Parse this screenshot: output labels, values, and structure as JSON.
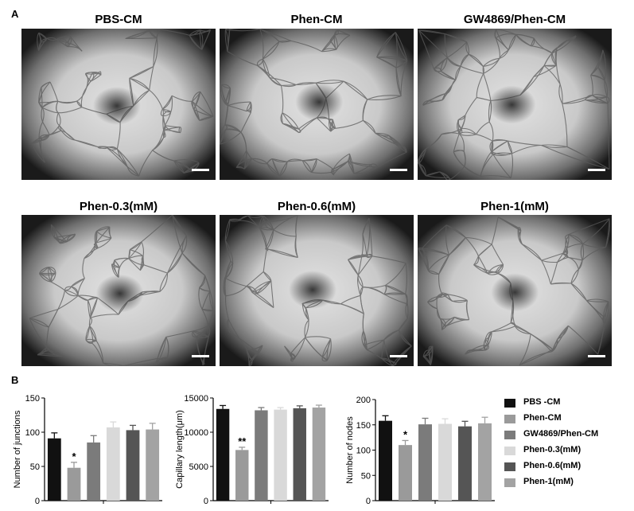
{
  "panel_labels": {
    "a": "A",
    "b": "B"
  },
  "images": [
    {
      "title": "PBS-CM"
    },
    {
      "title": "Phen-CM"
    },
    {
      "title": "GW4869/Phen-CM"
    },
    {
      "title": "Phen-0.3(mM)"
    },
    {
      "title": "Phen-0.6(mM)"
    },
    {
      "title": "Phen-1(mM)"
    }
  ],
  "colors": {
    "PBS -CM": "#111111",
    "Phen-CM": "#9a9a9a",
    "GW4869/Phen-CM": "#7b7b7b",
    "Phen-0.3(mM)": "#d9d9d9",
    "Phen-0.6(mM)": "#555555",
    "Phen-1(mM)": "#a3a3a3"
  },
  "chart_data": [
    {
      "type": "bar",
      "ylabel": "Number of junctions",
      "ylim": [
        0,
        150
      ],
      "yticks": [
        "0",
        "50",
        "100",
        "150"
      ],
      "categories": [
        "PBS -CM",
        "Phen-CM",
        "GW4869/Phen-CM",
        "Phen-0.3(mM)",
        "Phen-0.6(mM)",
        "Phen-1(mM)"
      ],
      "values": [
        91,
        48,
        85,
        107,
        103,
        104
      ],
      "errors": [
        8,
        8,
        10,
        8,
        7,
        9
      ],
      "annotations": [
        "",
        "*",
        "",
        "",
        "",
        ""
      ]
    },
    {
      "type": "bar",
      "ylabel": "Capillary length(μm)",
      "ylim": [
        0,
        15000
      ],
      "yticks": [
        "0",
        "5000",
        "10000",
        "15000"
      ],
      "categories": [
        "PBS -CM",
        "Phen-CM",
        "GW4869/Phen-CM",
        "Phen-0.3(mM)",
        "Phen-0.6(mM)",
        "Phen-1(mM)"
      ],
      "values": [
        13400,
        7400,
        13200,
        13300,
        13500,
        13600
      ],
      "errors": [
        500,
        400,
        400,
        300,
        350,
        350
      ],
      "annotations": [
        "",
        "**",
        "",
        "",
        "",
        ""
      ]
    },
    {
      "type": "bar",
      "ylabel": "Number of nodes",
      "ylim": [
        0,
        200
      ],
      "yticks": [
        "0",
        "50",
        "100",
        "150",
        "200"
      ],
      "categories": [
        "PBS -CM",
        "Phen-CM",
        "GW4869/Phen-CM",
        "Phen-0.3(mM)",
        "Phen-0.6(mM)",
        "Phen-1(mM)"
      ],
      "values": [
        158,
        110,
        151,
        152,
        147,
        153
      ],
      "errors": [
        10,
        9,
        12,
        10,
        10,
        12
      ],
      "annotations": [
        "",
        "*",
        "",
        "",
        "",
        ""
      ]
    }
  ],
  "legend": [
    "PBS -CM",
    "Phen-CM",
    "GW4869/Phen-CM",
    "Phen-0.3(mM)",
    "Phen-0.6(mM)",
    "Phen-1(mM)"
  ]
}
